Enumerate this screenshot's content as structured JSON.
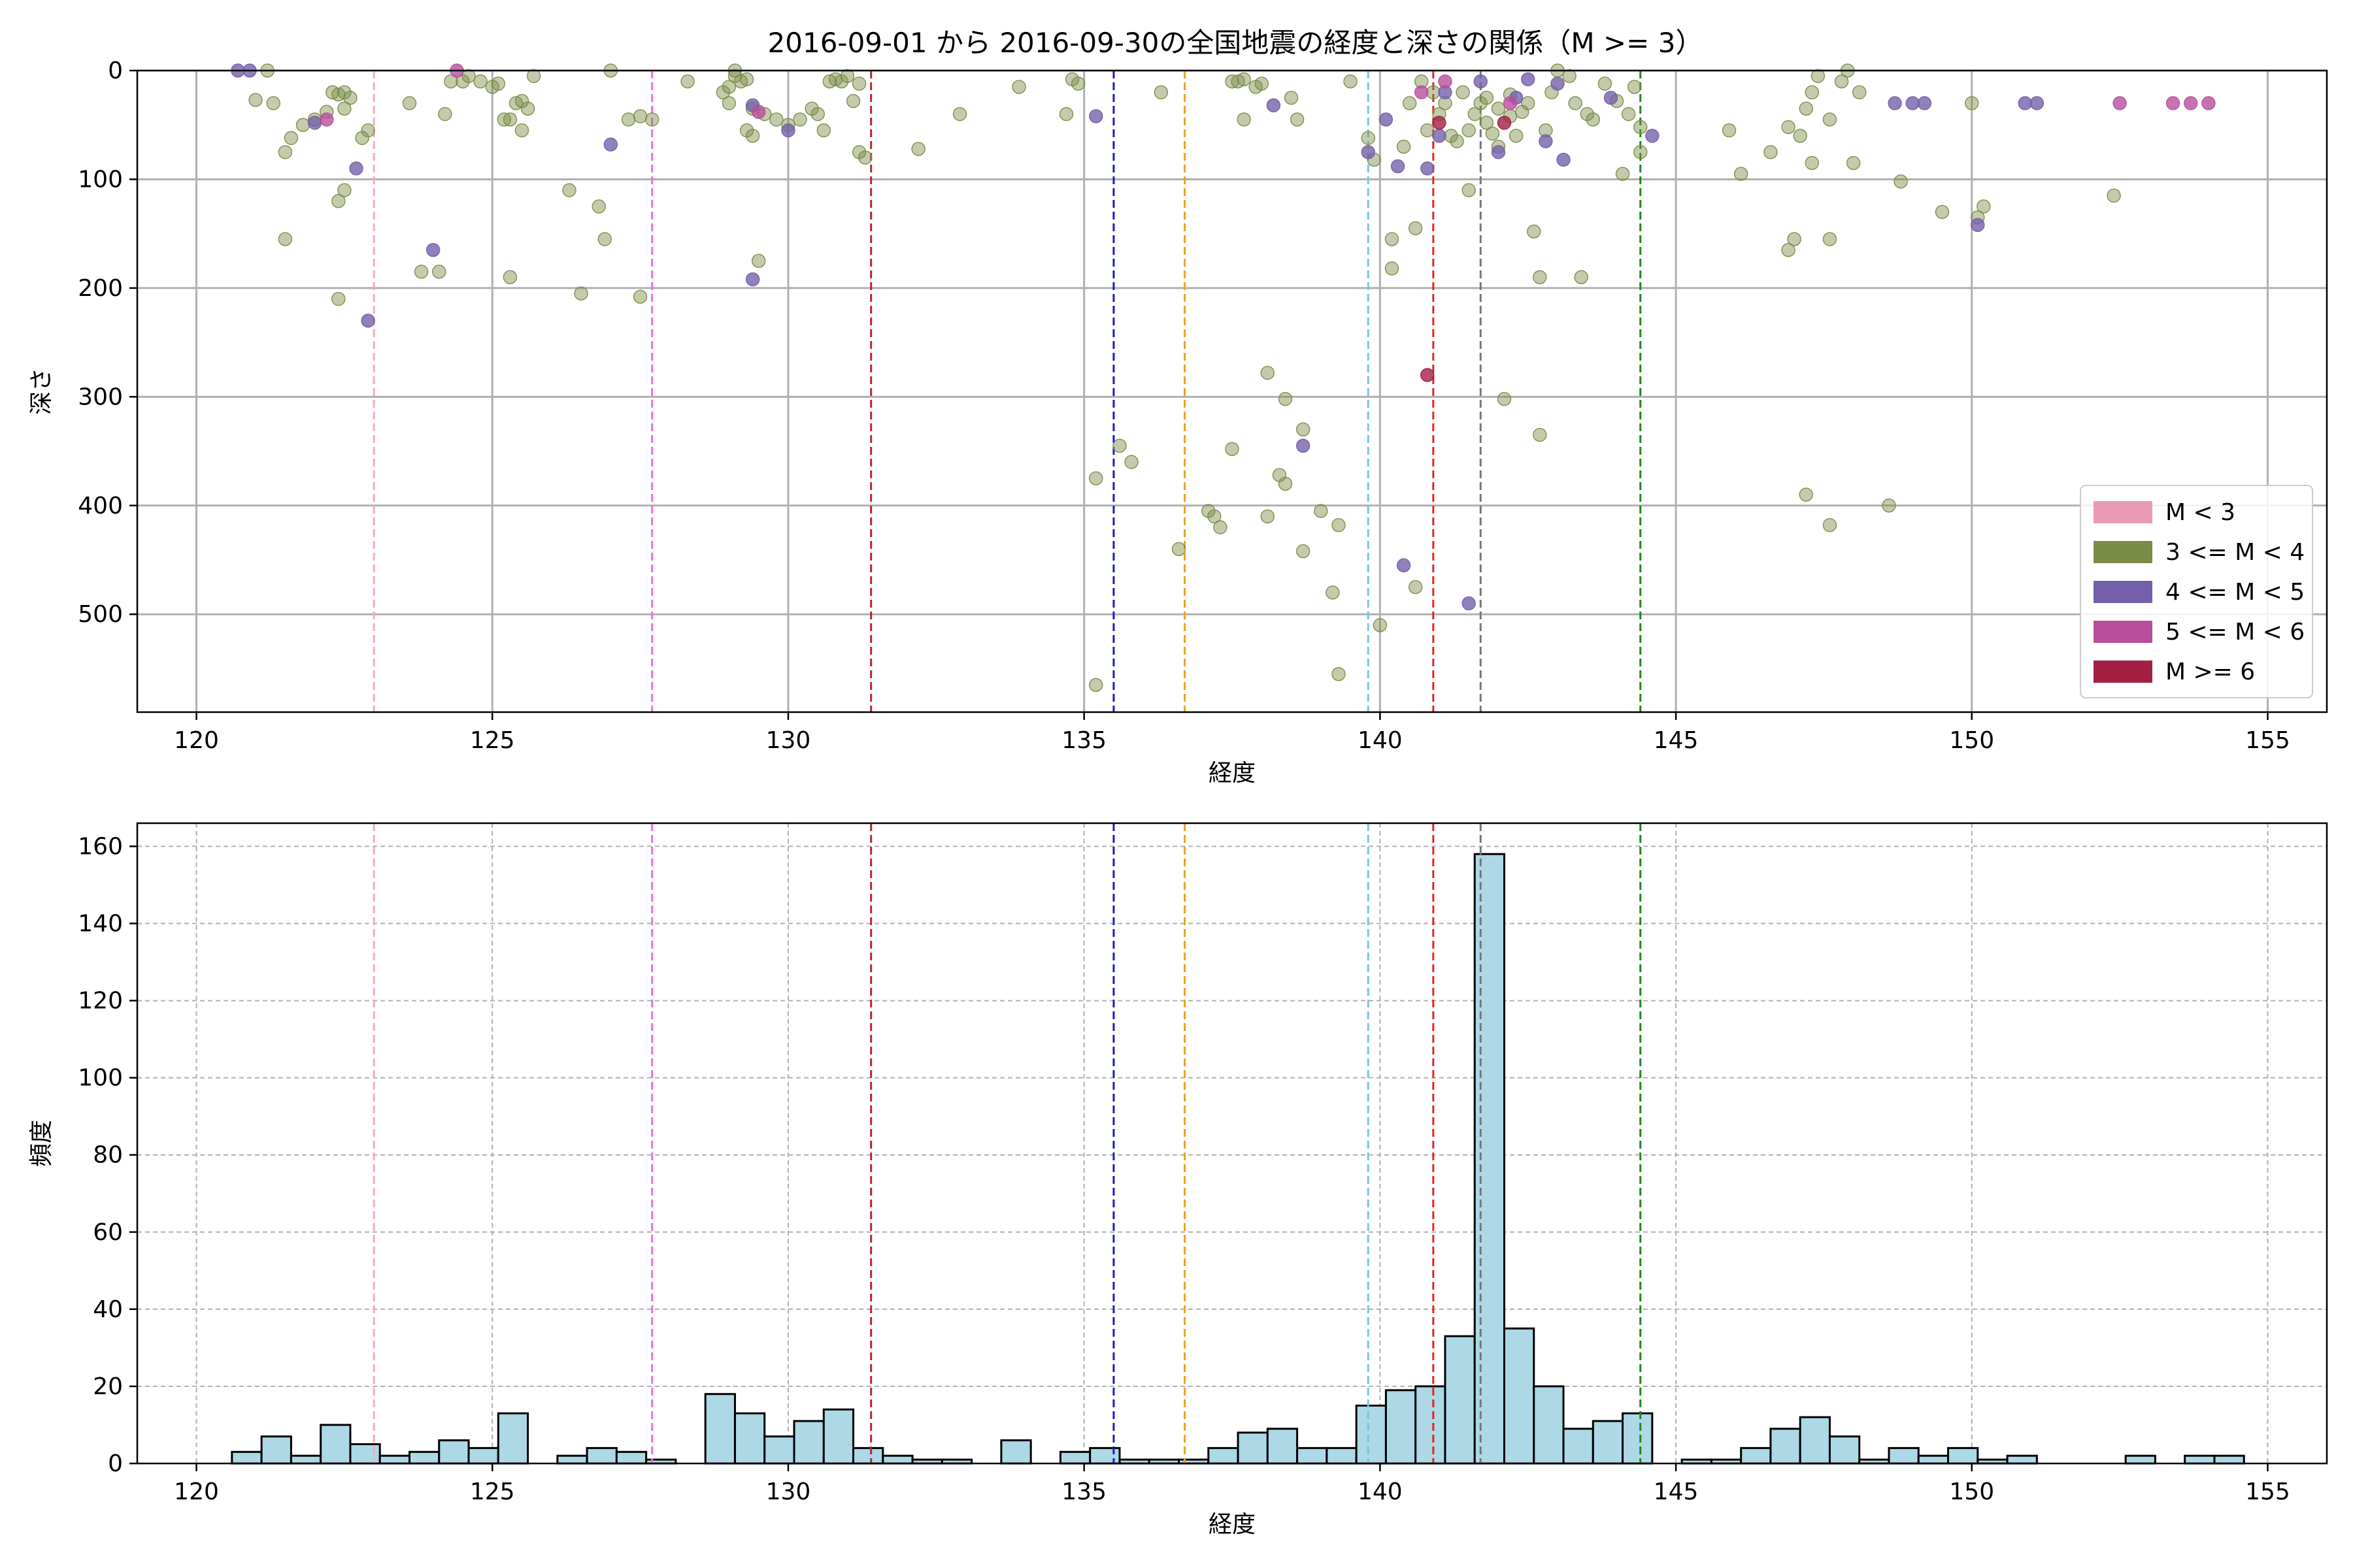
{
  "figure": {
    "title": "2016-09-01 から 2016-09-30の全国地震の経度と深さの関係（M >= 3）"
  },
  "chart_data": [
    {
      "type": "scatter",
      "xlabel": "経度",
      "ylabel": "深さ",
      "xlim": [
        119,
        156
      ],
      "ylim": [
        0,
        590
      ],
      "y_inverted": true,
      "xticks": [
        120,
        125,
        130,
        135,
        140,
        145,
        150,
        155
      ],
      "yticks": [
        0,
        100,
        200,
        300,
        400,
        500
      ],
      "grid": true,
      "legend_position": "lower-right",
      "legend": [
        {
          "label": "M < 3",
          "color": "#e89ab4"
        },
        {
          "label": "3 <= M < 4",
          "color": "#7b8c47"
        },
        {
          "label": "4 <= M < 5",
          "color": "#7460aa"
        },
        {
          "label": "5 <= M < 6",
          "color": "#b84f9c"
        },
        {
          "label": "M >= 6",
          "color": "#a21f43"
        }
      ],
      "reference_lines": [
        {
          "x": 123.0,
          "color": "#f7a8c6"
        },
        {
          "x": 127.7,
          "color": "#ee6ae6"
        },
        {
          "x": 131.4,
          "color": "#b3262e"
        },
        {
          "x": 135.5,
          "color": "#1a1ac8"
        },
        {
          "x": 136.7,
          "color": "#f2a01e"
        },
        {
          "x": 139.8,
          "color": "#76c8de"
        },
        {
          "x": 140.9,
          "color": "#e42424"
        },
        {
          "x": 141.7,
          "color": "#777777"
        },
        {
          "x": 144.4,
          "color": "#1d8a1d"
        }
      ],
      "series": [
        {
          "class": 1,
          "color": "#7b8c47",
          "points": [
            [
              121.0,
              27
            ],
            [
              121.2,
              0
            ],
            [
              121.3,
              30
            ],
            [
              121.5,
              75
            ],
            [
              121.6,
              62
            ],
            [
              121.5,
              155
            ],
            [
              121.8,
              50
            ],
            [
              122.0,
              45
            ],
            [
              122.2,
              38
            ],
            [
              122.3,
              20
            ],
            [
              122.4,
              22
            ],
            [
              122.5,
              35
            ],
            [
              122.5,
              20
            ],
            [
              122.6,
              25
            ],
            [
              122.8,
              62
            ],
            [
              122.9,
              55
            ],
            [
              122.4,
              120
            ],
            [
              122.5,
              110
            ],
            [
              122.4,
              210
            ],
            [
              123.6,
              30
            ],
            [
              123.8,
              185
            ],
            [
              124.1,
              185
            ],
            [
              124.2,
              40
            ],
            [
              124.3,
              10
            ],
            [
              124.5,
              10
            ],
            [
              124.6,
              5
            ],
            [
              124.8,
              10
            ],
            [
              125.0,
              15
            ],
            [
              125.1,
              12
            ],
            [
              125.2,
              45
            ],
            [
              125.3,
              45
            ],
            [
              125.4,
              30
            ],
            [
              125.5,
              28
            ],
            [
              125.6,
              35
            ],
            [
              125.5,
              55
            ],
            [
              125.7,
              5
            ],
            [
              125.3,
              190
            ],
            [
              126.3,
              110
            ],
            [
              126.5,
              205
            ],
            [
              126.8,
              125
            ],
            [
              126.9,
              155
            ],
            [
              127.0,
              0
            ],
            [
              127.3,
              45
            ],
            [
              127.5,
              208
            ],
            [
              127.5,
              42
            ],
            [
              127.7,
              45
            ],
            [
              128.3,
              10
            ],
            [
              128.9,
              20
            ],
            [
              129.0,
              15
            ],
            [
              129.0,
              30
            ],
            [
              129.1,
              5
            ],
            [
              129.1,
              0
            ],
            [
              129.2,
              10
            ],
            [
              129.3,
              8
            ],
            [
              129.4,
              35
            ],
            [
              129.3,
              55
            ],
            [
              129.4,
              60
            ],
            [
              129.5,
              175
            ],
            [
              129.6,
              40
            ],
            [
              129.8,
              45
            ],
            [
              130.0,
              50
            ],
            [
              130.2,
              45
            ],
            [
              130.4,
              35
            ],
            [
              130.5,
              40
            ],
            [
              130.6,
              55
            ],
            [
              130.7,
              10
            ],
            [
              130.8,
              8
            ],
            [
              130.9,
              10
            ],
            [
              131.0,
              5
            ],
            [
              131.2,
              12
            ],
            [
              131.2,
              75
            ],
            [
              131.3,
              80
            ],
            [
              131.1,
              28
            ],
            [
              132.2,
              72
            ],
            [
              132.9,
              40
            ],
            [
              133.9,
              15
            ],
            [
              134.7,
              40
            ],
            [
              134.8,
              8
            ],
            [
              134.9,
              12
            ],
            [
              135.2,
              375
            ],
            [
              135.2,
              565
            ],
            [
              135.6,
              345
            ],
            [
              135.8,
              360
            ],
            [
              136.3,
              20
            ],
            [
              136.6,
              440
            ],
            [
              137.1,
              405
            ],
            [
              137.2,
              410
            ],
            [
              137.3,
              420
            ],
            [
              137.5,
              348
            ],
            [
              137.5,
              10
            ],
            [
              137.6,
              10
            ],
            [
              137.7,
              8
            ],
            [
              137.7,
              45
            ],
            [
              137.9,
              15
            ],
            [
              138.0,
              12
            ],
            [
              138.1,
              410
            ],
            [
              138.1,
              278
            ],
            [
              138.4,
              302
            ],
            [
              138.5,
              25
            ],
            [
              138.6,
              45
            ],
            [
              138.3,
              372
            ],
            [
              138.4,
              380
            ],
            [
              138.7,
              330
            ],
            [
              138.7,
              442
            ],
            [
              139.0,
              405
            ],
            [
              139.3,
              418
            ],
            [
              139.2,
              480
            ],
            [
              139.3,
              555
            ],
            [
              139.5,
              10
            ],
            [
              139.8,
              62
            ],
            [
              139.9,
              82
            ],
            [
              140.0,
              510
            ],
            [
              140.2,
              155
            ],
            [
              140.2,
              182
            ],
            [
              140.4,
              70
            ],
            [
              140.5,
              30
            ],
            [
              140.6,
              145
            ],
            [
              140.6,
              475
            ],
            [
              140.7,
              10
            ],
            [
              140.8,
              55
            ],
            [
              140.9,
              20
            ],
            [
              141.0,
              40
            ],
            [
              141.1,
              30
            ],
            [
              141.2,
              60
            ],
            [
              141.3,
              65
            ],
            [
              141.4,
              20
            ],
            [
              141.5,
              55
            ],
            [
              141.5,
              110
            ],
            [
              141.6,
              40
            ],
            [
              141.7,
              30
            ],
            [
              141.8,
              48
            ],
            [
              141.8,
              25
            ],
            [
              141.9,
              58
            ],
            [
              142.0,
              35
            ],
            [
              142.0,
              70
            ],
            [
              142.1,
              302
            ],
            [
              142.2,
              42
            ],
            [
              142.2,
              22
            ],
            [
              142.3,
              60
            ],
            [
              142.4,
              38
            ],
            [
              142.5,
              30
            ],
            [
              142.6,
              148
            ],
            [
              142.7,
              190
            ],
            [
              142.7,
              335
            ],
            [
              142.8,
              55
            ],
            [
              142.9,
              20
            ],
            [
              143.0,
              0
            ],
            [
              143.2,
              5
            ],
            [
              143.3,
              30
            ],
            [
              143.4,
              190
            ],
            [
              143.5,
              40
            ],
            [
              143.6,
              45
            ],
            [
              143.8,
              12
            ],
            [
              144.0,
              28
            ],
            [
              144.1,
              95
            ],
            [
              144.2,
              40
            ],
            [
              144.3,
              15
            ],
            [
              144.4,
              52
            ],
            [
              144.4,
              75
            ],
            [
              145.9,
              55
            ],
            [
              146.1,
              95
            ],
            [
              146.6,
              75
            ],
            [
              146.9,
              52
            ],
            [
              146.9,
              165
            ],
            [
              147.0,
              155
            ],
            [
              147.1,
              60
            ],
            [
              147.2,
              35
            ],
            [
              147.2,
              390
            ],
            [
              147.3,
              20
            ],
            [
              147.4,
              5
            ],
            [
              147.6,
              45
            ],
            [
              147.6,
              155
            ],
            [
              147.6,
              418
            ],
            [
              147.8,
              10
            ],
            [
              147.9,
              0
            ],
            [
              148.1,
              20
            ],
            [
              147.3,
              85
            ],
            [
              148.0,
              85
            ],
            [
              148.6,
              400
            ],
            [
              148.8,
              102
            ],
            [
              149.5,
              130
            ],
            [
              150.1,
              135
            ],
            [
              150.2,
              125
            ],
            [
              150.0,
              30
            ],
            [
              152.4,
              115
            ]
          ]
        },
        {
          "class": 2,
          "color": "#7460aa",
          "points": [
            [
              120.7,
              0
            ],
            [
              120.9,
              0
            ],
            [
              122.0,
              48
            ],
            [
              122.7,
              90
            ],
            [
              122.9,
              230
            ],
            [
              124.0,
              165
            ],
            [
              127.0,
              68
            ],
            [
              129.4,
              32
            ],
            [
              129.4,
              192
            ],
            [
              130.0,
              55
            ],
            [
              135.2,
              42
            ],
            [
              138.2,
              32
            ],
            [
              138.7,
              345
            ],
            [
              139.8,
              75
            ],
            [
              140.1,
              45
            ],
            [
              140.3,
              88
            ],
            [
              140.4,
              455
            ],
            [
              140.8,
              90
            ],
            [
              141.0,
              60
            ],
            [
              141.1,
              20
            ],
            [
              141.5,
              490
            ],
            [
              141.7,
              10
            ],
            [
              142.0,
              75
            ],
            [
              142.3,
              25
            ],
            [
              142.5,
              8
            ],
            [
              142.8,
              65
            ],
            [
              143.0,
              12
            ],
            [
              143.1,
              82
            ],
            [
              143.9,
              25
            ],
            [
              144.6,
              60
            ],
            [
              148.7,
              30
            ],
            [
              149.0,
              30
            ],
            [
              149.2,
              30
            ],
            [
              150.1,
              142
            ],
            [
              150.9,
              30
            ],
            [
              151.1,
              30
            ]
          ]
        },
        {
          "class": 3,
          "color": "#b84f9c",
          "points": [
            [
              122.2,
              45
            ],
            [
              124.4,
              0
            ],
            [
              129.5,
              38
            ],
            [
              140.7,
              20
            ],
            [
              141.1,
              10
            ],
            [
              142.2,
              30
            ],
            [
              152.5,
              30
            ],
            [
              153.4,
              30
            ],
            [
              153.7,
              30
            ],
            [
              154.0,
              30
            ]
          ]
        },
        {
          "class": 4,
          "color": "#a21f43",
          "points": [
            [
              140.8,
              280
            ],
            [
              141.0,
              48
            ],
            [
              142.1,
              48
            ]
          ]
        }
      ]
    },
    {
      "type": "bar",
      "subtype": "histogram",
      "xlabel": "経度",
      "ylabel": "頻度",
      "xlim": [
        119,
        156
      ],
      "ylim": [
        0,
        166
      ],
      "xticks": [
        120,
        125,
        130,
        135,
        140,
        145,
        150,
        155
      ],
      "yticks": [
        0,
        20,
        40,
        60,
        80,
        100,
        120,
        140,
        160
      ],
      "grid": "dashed",
      "bar_color": "#add8e6",
      "edge_color": "#000000",
      "bin_start": 120.6,
      "bin_width": 0.5,
      "values": [
        3,
        7,
        2,
        10,
        5,
        2,
        3,
        6,
        4,
        13,
        0,
        2,
        4,
        3,
        1,
        0,
        18,
        13,
        7,
        11,
        14,
        4,
        2,
        1,
        1,
        0,
        6,
        0,
        3,
        4,
        1,
        1,
        1,
        4,
        8,
        9,
        4,
        4,
        15,
        19,
        20,
        33,
        158,
        35,
        20,
        9,
        11,
        13,
        0,
        1,
        1,
        4,
        9,
        12,
        7,
        1,
        4,
        2,
        4,
        1,
        2,
        0,
        0,
        0,
        2,
        0,
        2,
        2
      ],
      "reference_lines": [
        {
          "x": 123.0,
          "color": "#f7a8c6"
        },
        {
          "x": 127.7,
          "color": "#ee6ae6"
        },
        {
          "x": 131.4,
          "color": "#b3262e"
        },
        {
          "x": 135.5,
          "color": "#1a1ac8"
        },
        {
          "x": 136.7,
          "color": "#f2a01e"
        },
        {
          "x": 139.8,
          "color": "#76c8de"
        },
        {
          "x": 140.9,
          "color": "#e42424"
        },
        {
          "x": 141.7,
          "color": "#777777"
        },
        {
          "x": 144.4,
          "color": "#1d8a1d"
        }
      ]
    }
  ]
}
